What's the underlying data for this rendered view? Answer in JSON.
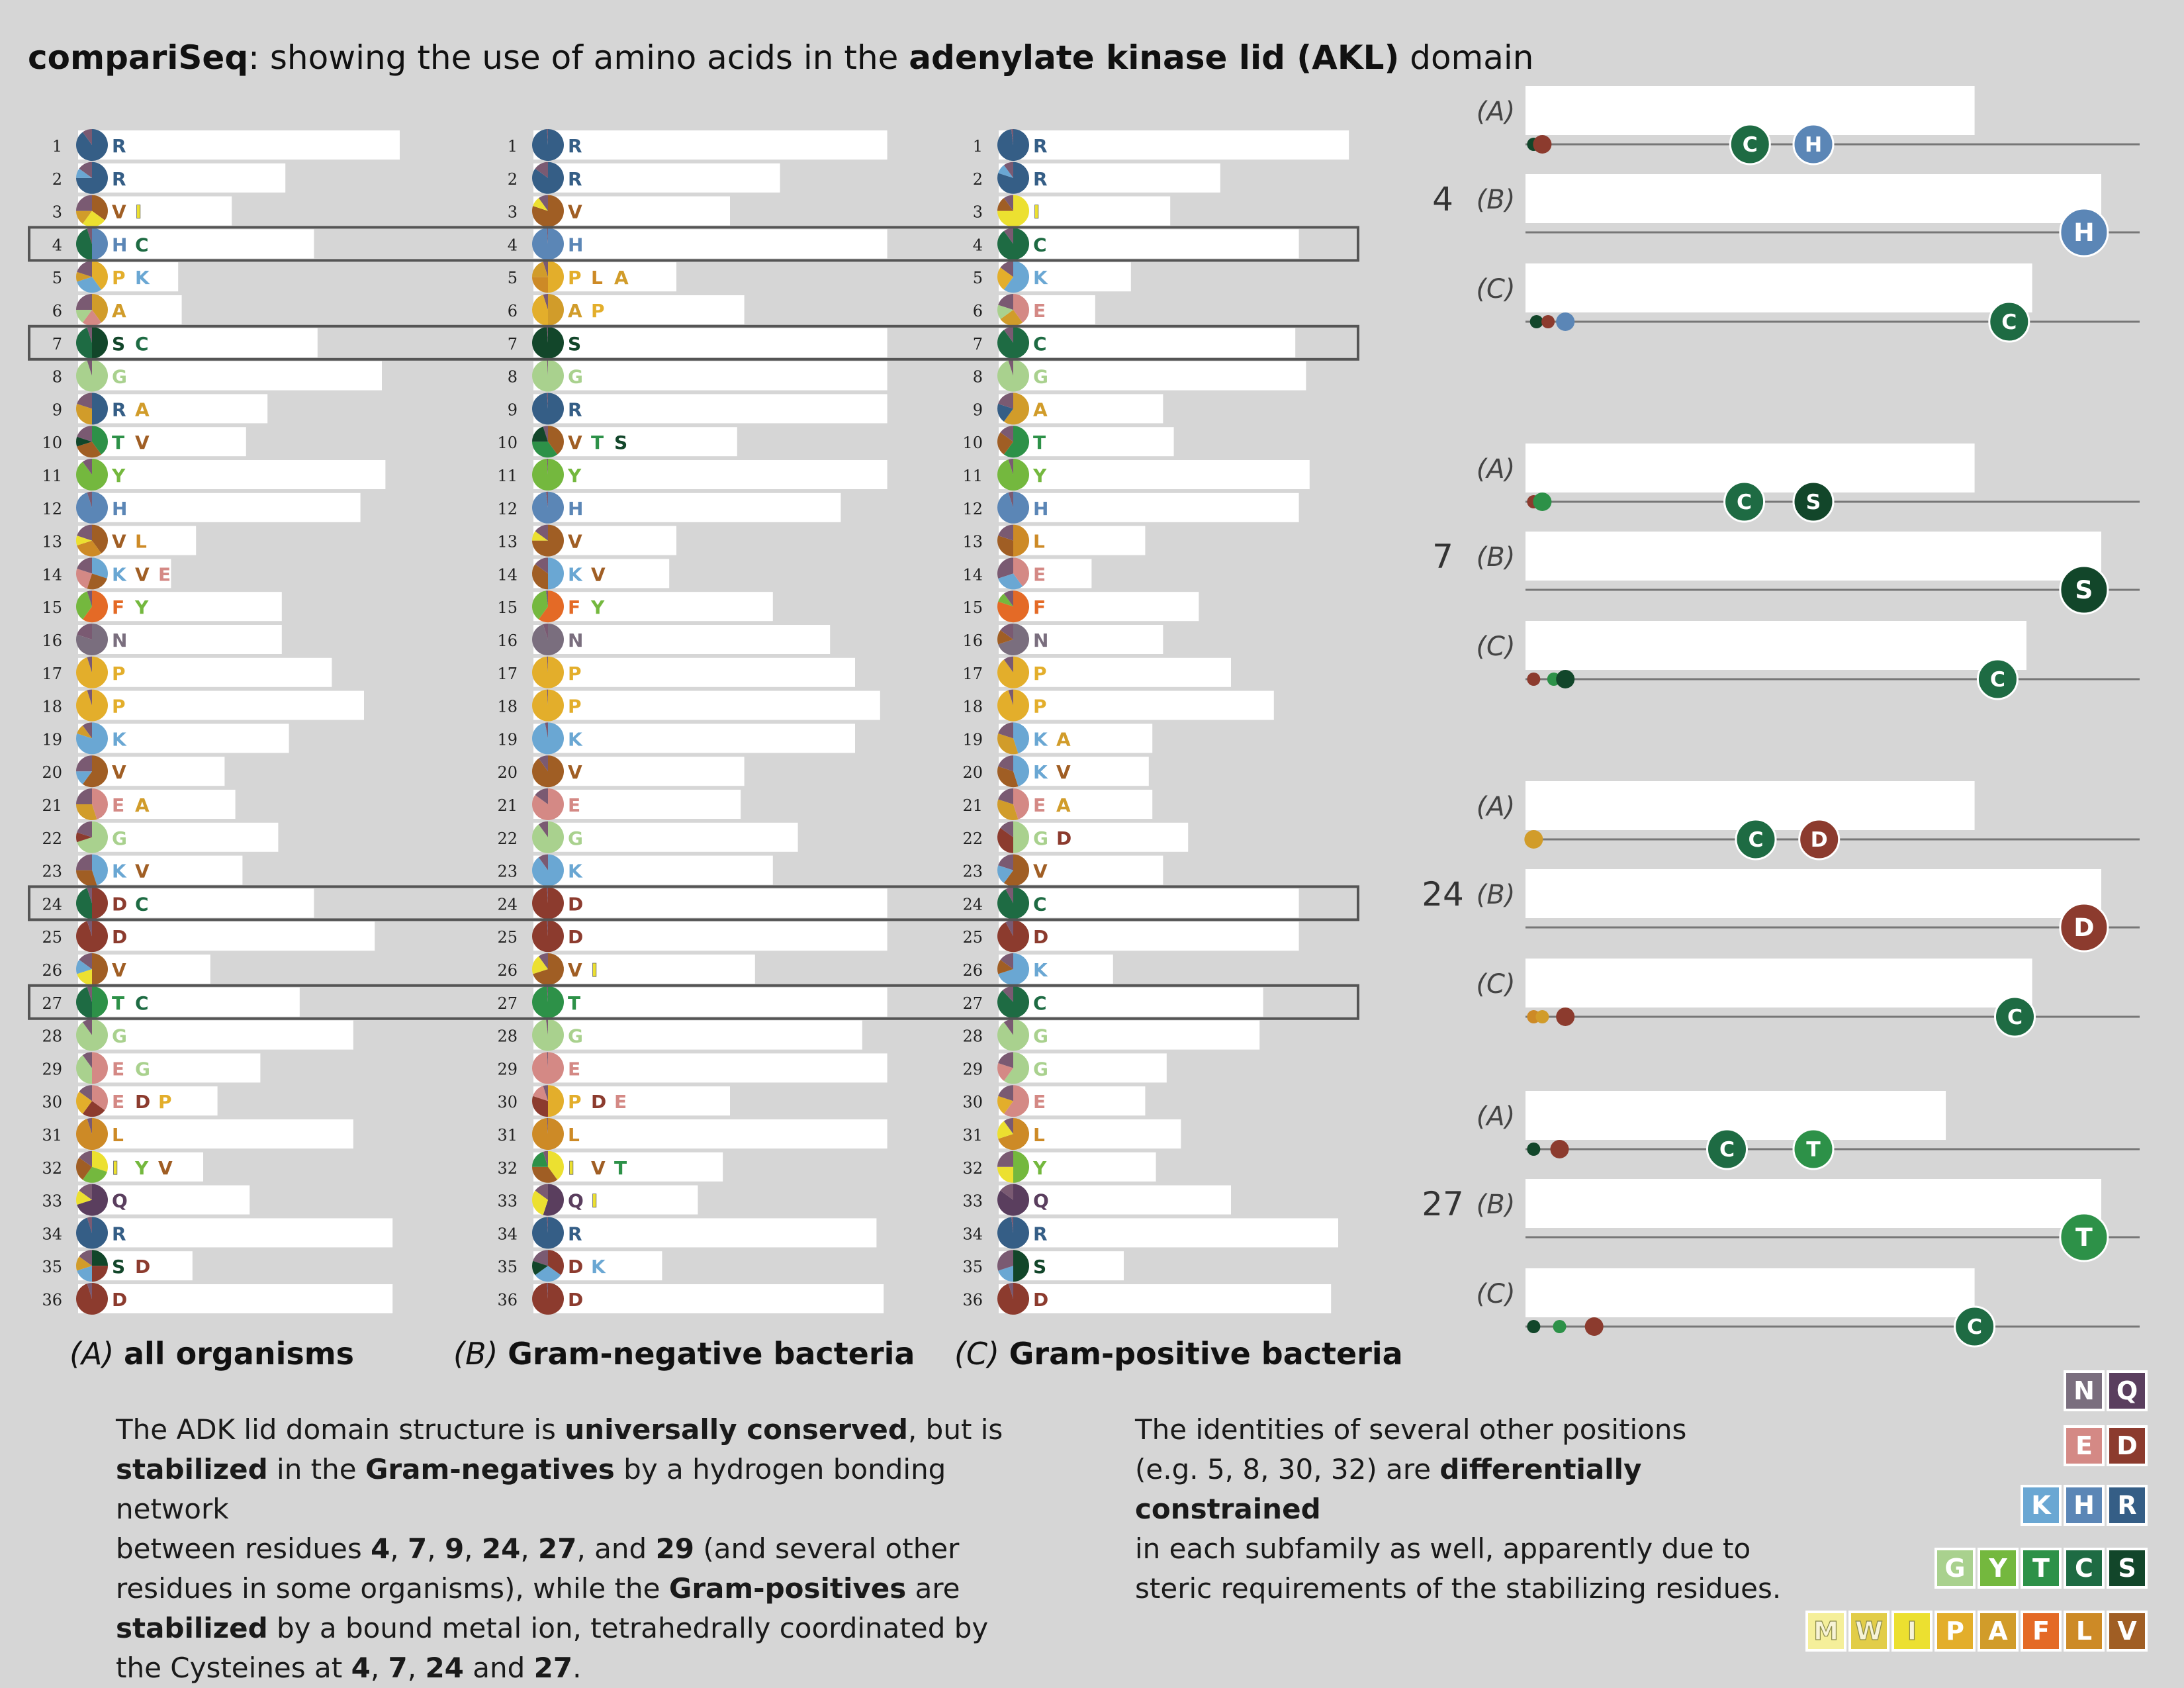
{
  "title": {
    "brand": "compariSeq",
    "mid": ": showing the use of amino acids in the ",
    "bold": "adenylate kinase lid (AKL)",
    "end": " domain"
  },
  "colors": {
    "R": "#355e86",
    "K": "#6aa7d3",
    "H": "#5b86b6",
    "D": "#8c3b2e",
    "E": "#d48985",
    "N": "#7a6e7e",
    "Q": "#5a3e5e",
    "G": "#a9d18e",
    "Y": "#74b83e",
    "T": "#2d9148",
    "C": "#1e6b43",
    "S": "#12462a",
    "M": "#f5ef9a",
    "W": "#e2cd48",
    "I": "#ece030",
    "P": "#e3ae2b",
    "A": "#d19c2a",
    "F": "#e46a26",
    "L": "#cd8a26",
    "V": "#a05e24"
  },
  "columns": [
    {
      "key": "A",
      "caption_prefix": "(A)",
      "caption_bold": "all organisms"
    },
    {
      "key": "B",
      "caption_prefix": "(B)",
      "caption_bold": "Gram-negative bacteria"
    },
    {
      "key": "C",
      "caption_prefix": "(C)",
      "caption_bold": "Gram-positive bacteria"
    }
  ],
  "chart_data": {
    "type": "table",
    "positions": [
      1,
      2,
      3,
      4,
      5,
      6,
      7,
      8,
      9,
      10,
      11,
      12,
      13,
      14,
      15,
      16,
      17,
      18,
      19,
      20,
      21,
      22,
      23,
      24,
      25,
      26,
      27,
      28,
      29,
      30,
      31,
      32,
      33,
      34,
      35,
      36
    ],
    "highlighted_positions": [
      4,
      7,
      24,
      27
    ],
    "residues": {
      "A": [
        [
          "R"
        ],
        [
          "R"
        ],
        [
          "V",
          "I"
        ],
        [
          "H",
          "C"
        ],
        [
          "P",
          "K"
        ],
        [
          "A"
        ],
        [
          "S",
          "C"
        ],
        [
          "G"
        ],
        [
          "R",
          "A"
        ],
        [
          "T",
          "V"
        ],
        [
          "Y"
        ],
        [
          "H"
        ],
        [
          "V",
          "L"
        ],
        [
          "K",
          "V",
          "E"
        ],
        [
          "F",
          "Y"
        ],
        [
          "N"
        ],
        [
          "P"
        ],
        [
          "P"
        ],
        [
          "K"
        ],
        [
          "V"
        ],
        [
          "E",
          "A"
        ],
        [
          "G"
        ],
        [
          "K",
          "V"
        ],
        [
          "D",
          "C"
        ],
        [
          "D"
        ],
        [
          "V"
        ],
        [
          "T",
          "C"
        ],
        [
          "G"
        ],
        [
          "E",
          "G"
        ],
        [
          "E",
          "D",
          "P"
        ],
        [
          "L"
        ],
        [
          "I",
          "Y",
          "V"
        ],
        [
          "Q"
        ],
        [
          "R"
        ],
        [
          "S",
          "D"
        ],
        [
          "D"
        ]
      ],
      "B": [
        [
          "R"
        ],
        [
          "R"
        ],
        [
          "V"
        ],
        [
          "H"
        ],
        [
          "P",
          "L",
          "A"
        ],
        [
          "A",
          "P"
        ],
        [
          "S"
        ],
        [
          "G"
        ],
        [
          "R"
        ],
        [
          "V",
          "T",
          "S"
        ],
        [
          "Y"
        ],
        [
          "H"
        ],
        [
          "V"
        ],
        [
          "K",
          "V"
        ],
        [
          "F",
          "Y"
        ],
        [
          "N"
        ],
        [
          "P"
        ],
        [
          "P"
        ],
        [
          "K"
        ],
        [
          "V"
        ],
        [
          "E"
        ],
        [
          "G"
        ],
        [
          "K"
        ],
        [
          "D"
        ],
        [
          "D"
        ],
        [
          "V",
          "I"
        ],
        [
          "T"
        ],
        [
          "G"
        ],
        [
          "E"
        ],
        [
          "P",
          "D",
          "E"
        ],
        [
          "L"
        ],
        [
          "I",
          "V",
          "T"
        ],
        [
          "Q",
          "I"
        ],
        [
          "R"
        ],
        [
          "D",
          "K"
        ],
        [
          "D"
        ]
      ],
      "C": [
        [
          "R"
        ],
        [
          "R"
        ],
        [
          "I"
        ],
        [
          "C"
        ],
        [
          "K"
        ],
        [
          "E"
        ],
        [
          "C"
        ],
        [
          "G"
        ],
        [
          "A"
        ],
        [
          "T"
        ],
        [
          "Y"
        ],
        [
          "H"
        ],
        [
          "L"
        ],
        [
          "E"
        ],
        [
          "F"
        ],
        [
          "N"
        ],
        [
          "P"
        ],
        [
          "P"
        ],
        [
          "K",
          "A"
        ],
        [
          "K",
          "V"
        ],
        [
          "E",
          "A"
        ],
        [
          "G",
          "D"
        ],
        [
          "V"
        ],
        [
          "C"
        ],
        [
          "D"
        ],
        [
          "K"
        ],
        [
          "C"
        ],
        [
          "G"
        ],
        [
          "G"
        ],
        [
          "E"
        ],
        [
          "L"
        ],
        [
          "Y"
        ],
        [
          "Q"
        ],
        [
          "R"
        ],
        [
          "S"
        ],
        [
          "D"
        ]
      ]
    },
    "conservation": {
      "A": [
        0.9,
        0.58,
        0.43,
        0.66,
        0.28,
        0.29,
        0.67,
        0.85,
        0.53,
        0.47,
        0.86,
        0.79,
        0.33,
        0.26,
        0.57,
        0.57,
        0.71,
        0.8,
        0.59,
        0.41,
        0.44,
        0.56,
        0.46,
        0.66,
        0.83,
        0.37,
        0.62,
        0.77,
        0.51,
        0.39,
        0.77,
        0.35,
        0.48,
        0.88,
        0.32,
        0.88
      ],
      "B": [
        0.99,
        0.69,
        0.55,
        0.99,
        0.4,
        0.59,
        0.99,
        0.99,
        0.99,
        0.57,
        0.99,
        0.86,
        0.4,
        0.38,
        0.67,
        0.83,
        0.9,
        0.97,
        0.9,
        0.59,
        0.58,
        0.74,
        0.67,
        0.99,
        0.99,
        0.62,
        0.99,
        0.92,
        0.99,
        0.55,
        0.99,
        0.53,
        0.46,
        0.96,
        0.36,
        0.98
      ],
      "C": [
        0.98,
        0.62,
        0.48,
        0.84,
        0.37,
        0.27,
        0.83,
        0.86,
        0.46,
        0.49,
        0.87,
        0.84,
        0.41,
        0.26,
        0.56,
        0.46,
        0.65,
        0.77,
        0.43,
        0.42,
        0.43,
        0.53,
        0.46,
        0.84,
        0.84,
        0.32,
        0.74,
        0.73,
        0.47,
        0.41,
        0.51,
        0.44,
        0.65,
        0.95,
        0.35,
        0.93
      ]
    },
    "pie_mix": {
      "A": [
        {
          "R": 0.9
        },
        {
          "R": 0.75,
          "K": 0.1
        },
        {
          "V": 0.35,
          "I": 0.25,
          "A": 0.15
        },
        {
          "H": 0.5,
          "C": 0.45
        },
        {
          "P": 0.4,
          "K": 0.3,
          "A": 0.1
        },
        {
          "A": 0.4,
          "E": 0.2,
          "G": 0.15
        },
        {
          "S": 0.5,
          "C": 0.45
        },
        {
          "G": 0.95
        },
        {
          "R": 0.5,
          "A": 0.3
        },
        {
          "T": 0.4,
          "V": 0.3,
          "S": 0.1
        },
        {
          "Y": 0.9
        },
        {
          "H": 0.95
        },
        {
          "V": 0.4,
          "L": 0.3,
          "I": 0.1
        },
        {
          "K": 0.3,
          "V": 0.25,
          "E": 0.25
        },
        {
          "F": 0.6,
          "Y": 0.35
        },
        {
          "N": 0.8
        },
        {
          "P": 0.95
        },
        {
          "P": 0.95
        },
        {
          "K": 0.8,
          "A": 0.1
        },
        {
          "V": 0.6,
          "K": 0.15
        },
        {
          "E": 0.45,
          "A": 0.3
        },
        {
          "G": 0.7,
          "D": 0.1
        },
        {
          "K": 0.45,
          "V": 0.3
        },
        {
          "D": 0.5,
          "C": 0.45
        },
        {
          "D": 0.95
        },
        {
          "V": 0.5,
          "I": 0.2,
          "K": 0.15
        },
        {
          "T": 0.5,
          "C": 0.45
        },
        {
          "G": 0.9
        },
        {
          "E": 0.5,
          "G": 0.4
        },
        {
          "E": 0.35,
          "D": 0.25,
          "P": 0.25
        },
        {
          "L": 0.95
        },
        {
          "I": 0.3,
          "Y": 0.3,
          "V": 0.25
        },
        {
          "Q": 0.7,
          "I": 0.15
        },
        {
          "R": 0.95
        },
        {
          "S": 0.25,
          "D": 0.25,
          "K": 0.2,
          "A": 0.15
        },
        {
          "D": 0.95
        }
      ],
      "B": [
        {
          "R": 0.99
        },
        {
          "R": 0.85
        },
        {
          "V": 0.8,
          "I": 0.1
        },
        {
          "H": 0.99
        },
        {
          "P": 0.5,
          "L": 0.25,
          "A": 0.2
        },
        {
          "A": 0.5,
          "P": 0.45
        },
        {
          "S": 0.99
        },
        {
          "G": 0.99
        },
        {
          "R": 0.99
        },
        {
          "V": 0.4,
          "T": 0.35,
          "S": 0.2
        },
        {
          "Y": 0.99
        },
        {
          "H": 0.98
        },
        {
          "V": 0.75,
          "I": 0.1
        },
        {
          "K": 0.5,
          "V": 0.35
        },
        {
          "F": 0.6,
          "Y": 0.38
        },
        {
          "N": 0.95
        },
        {
          "P": 0.99
        },
        {
          "P": 0.99
        },
        {
          "K": 0.97
        },
        {
          "V": 0.9
        },
        {
          "E": 0.85
        },
        {
          "G": 0.9
        },
        {
          "K": 0.9
        },
        {
          "D": 0.99
        },
        {
          "D": 0.99
        },
        {
          "V": 0.7,
          "I": 0.2
        },
        {
          "T": 0.99
        },
        {
          "G": 0.98
        },
        {
          "E": 0.99
        },
        {
          "P": 0.5,
          "D": 0.3,
          "E": 0.15
        },
        {
          "L": 0.99
        },
        {
          "I": 0.4,
          "V": 0.35,
          "T": 0.2
        },
        {
          "Q": 0.55,
          "I": 0.3
        },
        {
          "R": 0.99
        },
        {
          "D": 0.35,
          "K": 0.3,
          "S": 0.15
        },
        {
          "D": 0.99
        }
      ],
      "C": [
        {
          "R": 0.98
        },
        {
          "R": 0.8,
          "K": 0.1
        },
        {
          "I": 0.75,
          "V": 0.15
        },
        {
          "C": 0.9
        },
        {
          "K": 0.6,
          "P": 0.25
        },
        {
          "E": 0.4,
          "A": 0.25,
          "G": 0.15
        },
        {
          "C": 0.9
        },
        {
          "G": 0.95
        },
        {
          "A": 0.6,
          "R": 0.2
        },
        {
          "T": 0.6,
          "V": 0.25
        },
        {
          "Y": 0.95
        },
        {
          "H": 0.95
        },
        {
          "L": 0.5,
          "V": 0.3
        },
        {
          "E": 0.4,
          "K": 0.3
        },
        {
          "F": 0.8,
          "Y": 0.1
        },
        {
          "N": 0.7,
          "V": 0.15
        },
        {
          "P": 0.9
        },
        {
          "P": 0.95
        },
        {
          "K": 0.45,
          "A": 0.35
        },
        {
          "K": 0.45,
          "V": 0.35
        },
        {
          "E": 0.45,
          "A": 0.35
        },
        {
          "G": 0.5,
          "D": 0.35
        },
        {
          "V": 0.6,
          "K": 0.2
        },
        {
          "C": 0.92
        },
        {
          "D": 0.92
        },
        {
          "K": 0.7,
          "V": 0.15
        },
        {
          "C": 0.88
        },
        {
          "G": 0.9
        },
        {
          "G": 0.6,
          "E": 0.2
        },
        {
          "E": 0.6,
          "P": 0.2
        },
        {
          "L": 0.7,
          "I": 0.2
        },
        {
          "Y": 0.5,
          "I": 0.25
        },
        {
          "Q": 0.85
        },
        {
          "R": 0.98
        },
        {
          "S": 0.5,
          "K": 0.2
        },
        {
          "D": 0.95
        }
      ]
    },
    "subfamily_panels": [
      {
        "position": "4",
        "rows": [
          {
            "label": "(A)",
            "bar": 0.78,
            "dots": [
              {
                "aa": "S",
                "x": 0.005
              },
              {
                "aa": "D",
                "x": 0.02
              }
            ],
            "big": [
              {
                "aa": "C",
                "x": 0.39
              },
              {
                "aa": "H",
                "x": 0.5
              }
            ]
          },
          {
            "label": "(B)",
            "bar": 1.0,
            "dots": [],
            "big": [
              {
                "aa": "H",
                "x": 0.97
              }
            ]
          },
          {
            "label": "(C)",
            "bar": 0.88,
            "dots": [
              {
                "aa": "S",
                "x": 0.01
              },
              {
                "aa": "D",
                "x": 0.03
              },
              {
                "aa": "H",
                "x": 0.06
              }
            ],
            "big": [
              {
                "aa": "C",
                "x": 0.84
              }
            ]
          }
        ]
      },
      {
        "position": "7",
        "rows": [
          {
            "label": "(A)",
            "bar": 0.78,
            "dots": [
              {
                "aa": "D",
                "x": 0.005
              },
              {
                "aa": "T",
                "x": 0.02
              }
            ],
            "big": [
              {
                "aa": "C",
                "x": 0.38
              },
              {
                "aa": "S",
                "x": 0.5
              }
            ]
          },
          {
            "label": "(B)",
            "bar": 1.0,
            "dots": [],
            "big": [
              {
                "aa": "S",
                "x": 0.97
              }
            ]
          },
          {
            "label": "(C)",
            "bar": 0.87,
            "dots": [
              {
                "aa": "D",
                "x": 0.005
              },
              {
                "aa": "T",
                "x": 0.04
              },
              {
                "aa": "S",
                "x": 0.06
              }
            ],
            "big": [
              {
                "aa": "C",
                "x": 0.82
              }
            ]
          }
        ]
      },
      {
        "position": "24",
        "rows": [
          {
            "label": "(A)",
            "bar": 0.78,
            "dots": [
              {
                "aa": "A",
                "x": 0.005
              }
            ],
            "big": [
              {
                "aa": "C",
                "x": 0.4
              },
              {
                "aa": "D",
                "x": 0.51
              }
            ]
          },
          {
            "label": "(B)",
            "bar": 1.0,
            "dots": [],
            "big": [
              {
                "aa": "D",
                "x": 0.97
              }
            ]
          },
          {
            "label": "(C)",
            "bar": 0.88,
            "dots": [
              {
                "aa": "L",
                "x": 0.005
              },
              {
                "aa": "A",
                "x": 0.02
              },
              {
                "aa": "D",
                "x": 0.06
              }
            ],
            "big": [
              {
                "aa": "C",
                "x": 0.85
              }
            ]
          }
        ]
      },
      {
        "position": "27",
        "rows": [
          {
            "label": "(A)",
            "bar": 0.73,
            "dots": [
              {
                "aa": "S",
                "x": 0.005
              },
              {
                "aa": "D",
                "x": 0.05
              }
            ],
            "big": [
              {
                "aa": "C",
                "x": 0.35
              },
              {
                "aa": "T",
                "x": 0.5
              }
            ]
          },
          {
            "label": "(B)",
            "bar": 1.0,
            "dots": [],
            "big": [
              {
                "aa": "T",
                "x": 0.97
              }
            ]
          },
          {
            "label": "(C)",
            "bar": 0.78,
            "dots": [
              {
                "aa": "S",
                "x": 0.005
              },
              {
                "aa": "T",
                "x": 0.05
              },
              {
                "aa": "D",
                "x": 0.11
              }
            ],
            "big": [
              {
                "aa": "C",
                "x": 0.78
              }
            ]
          }
        ]
      }
    ]
  },
  "legend": [
    [
      "N",
      "Q"
    ],
    [
      "E",
      "D"
    ],
    [
      "K",
      "H",
      "R"
    ],
    [
      "G",
      "Y",
      "T",
      "C",
      "S"
    ],
    [
      "M",
      "W",
      "I",
      "P",
      "A",
      "F",
      "L",
      "V"
    ]
  ],
  "para_left": {
    "t1": "The ADK lid domain structure is ",
    "b1": "universally conserved",
    "t2": ", but is",
    "b2": "stabilized",
    "t3": " in the ",
    "b3": "Gram-negatives",
    "t4": " by a hydrogen bonding network",
    "t5": "between residues ",
    "b4": "4",
    "c1": ", ",
    "b5": "7",
    "c2": ", ",
    "b6": "9",
    "c3": ", ",
    "b7": "24",
    "c4": ", ",
    "b8": "27",
    "t6": ", and ",
    "b9": "29",
    "t7": " (and several other",
    "t8": "residues in some organisms), while the ",
    "b10": "Gram-positives",
    "t9": " are",
    "b11": "stabilized",
    "t10": " by a bound metal ion, tetrahedrally coordinated by",
    "t11": "the Cysteines at ",
    "b12": "4",
    "c5": ", ",
    "b13": "7",
    "c6": ", ",
    "b14": "24",
    "t12": " and ",
    "b15": "27",
    "t13": "."
  },
  "para_right": {
    "t1": "The identities of several other positions",
    "t2": "(e.g. 5, 8, 30, 32) are ",
    "b1": "differentially constrained",
    "t3": "in each subfamily as well, apparently due to",
    "t4": "steric requirements of the stabilizing residues."
  }
}
